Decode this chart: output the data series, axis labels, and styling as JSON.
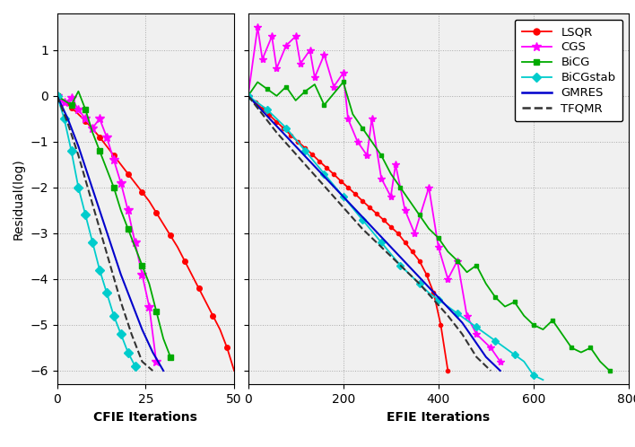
{
  "cfie": {
    "lsqr": {
      "x": [
        0,
        2,
        4,
        6,
        8,
        10,
        12,
        14,
        16,
        18,
        20,
        22,
        24,
        26,
        28,
        30,
        32,
        34,
        36,
        38,
        40,
        42,
        44,
        46,
        48,
        50
      ],
      "y": [
        0,
        -0.12,
        -0.25,
        -0.4,
        -0.55,
        -0.72,
        -0.9,
        -1.1,
        -1.3,
        -1.5,
        -1.7,
        -1.9,
        -2.1,
        -2.3,
        -2.55,
        -2.8,
        -3.05,
        -3.3,
        -3.6,
        -3.9,
        -4.2,
        -4.5,
        -4.8,
        -5.1,
        -5.5,
        -6.0
      ]
    },
    "cgs": {
      "x": [
        0,
        2,
        4,
        6,
        8,
        10,
        12,
        14,
        16,
        18,
        20,
        22,
        24,
        26,
        28
      ],
      "y": [
        0,
        -0.15,
        -0.05,
        -0.3,
        -0.5,
        -0.7,
        -0.5,
        -0.9,
        -1.4,
        -1.9,
        -2.5,
        -3.2,
        -3.9,
        -4.6,
        -5.8
      ]
    },
    "bicg": {
      "x": [
        0,
        2,
        4,
        6,
        8,
        10,
        12,
        14,
        16,
        18,
        20,
        22,
        24,
        26,
        28,
        30,
        32
      ],
      "y": [
        0,
        -0.1,
        -0.2,
        0.1,
        -0.3,
        -0.8,
        -1.2,
        -1.6,
        -2.0,
        -2.5,
        -2.9,
        -3.3,
        -3.7,
        -4.1,
        -4.7,
        -5.3,
        -5.7
      ]
    },
    "bicgstab": {
      "x": [
        0,
        2,
        4,
        6,
        8,
        10,
        12,
        14,
        16,
        18,
        20,
        22
      ],
      "y": [
        0,
        -0.5,
        -1.2,
        -2.0,
        -2.6,
        -3.2,
        -3.8,
        -4.3,
        -4.8,
        -5.2,
        -5.6,
        -5.9
      ]
    },
    "gmres": {
      "x": [
        0,
        3,
        6,
        9,
        12,
        15,
        18,
        21,
        24,
        27,
        30
      ],
      "y": [
        0,
        -0.5,
        -1.1,
        -1.8,
        -2.5,
        -3.2,
        -3.9,
        -4.5,
        -5.1,
        -5.6,
        -6.0
      ]
    },
    "tfqmr": {
      "x": [
        0,
        3,
        6,
        9,
        12,
        15,
        18,
        21,
        24,
        27
      ],
      "y": [
        0,
        -0.6,
        -1.3,
        -2.1,
        -2.9,
        -3.7,
        -4.5,
        -5.2,
        -5.8,
        -6.0
      ]
    }
  },
  "efie": {
    "lsqr": {
      "x": [
        0,
        15,
        30,
        45,
        60,
        75,
        90,
        105,
        120,
        135,
        150,
        165,
        180,
        195,
        210,
        225,
        240,
        255,
        270,
        285,
        300,
        315,
        330,
        345,
        360,
        375,
        390,
        405,
        420
      ],
      "y": [
        0,
        -0.14,
        -0.28,
        -0.42,
        -0.57,
        -0.71,
        -0.86,
        -1.0,
        -1.14,
        -1.28,
        -1.43,
        -1.57,
        -1.71,
        -1.86,
        -2.0,
        -2.14,
        -2.29,
        -2.43,
        -2.57,
        -2.71,
        -2.86,
        -3.0,
        -3.2,
        -3.4,
        -3.6,
        -3.9,
        -4.3,
        -5.0,
        -6.0
      ]
    },
    "cgs": {
      "x": [
        0,
        20,
        30,
        50,
        60,
        80,
        100,
        110,
        130,
        140,
        160,
        180,
        200,
        210,
        230,
        250,
        260,
        280,
        300,
        310,
        330,
        350,
        380,
        400,
        420,
        440,
        460,
        480,
        510,
        530
      ],
      "y": [
        0,
        1.5,
        0.8,
        1.3,
        0.6,
        1.1,
        1.3,
        0.7,
        1.0,
        0.4,
        0.9,
        0.2,
        0.5,
        -0.5,
        -1.0,
        -1.3,
        -0.5,
        -1.8,
        -2.2,
        -1.5,
        -2.5,
        -3.0,
        -2.0,
        -3.3,
        -4.0,
        -3.6,
        -4.8,
        -5.2,
        -5.5,
        -5.8
      ]
    },
    "bicg": {
      "x": [
        0,
        20,
        40,
        60,
        80,
        100,
        120,
        140,
        160,
        180,
        200,
        220,
        240,
        260,
        280,
        300,
        320,
        340,
        360,
        380,
        400,
        420,
        440,
        460,
        480,
        500,
        520,
        540,
        560,
        580,
        600,
        620,
        640,
        660,
        680,
        700,
        720,
        740,
        760
      ],
      "y": [
        0,
        0.3,
        0.15,
        0.0,
        0.2,
        -0.1,
        0.1,
        0.25,
        -0.2,
        0.05,
        0.3,
        -0.4,
        -0.7,
        -1.0,
        -1.3,
        -1.7,
        -2.0,
        -2.3,
        -2.6,
        -2.9,
        -3.1,
        -3.4,
        -3.6,
        -3.85,
        -3.7,
        -4.1,
        -4.4,
        -4.6,
        -4.5,
        -4.8,
        -5.0,
        -5.1,
        -4.9,
        -5.2,
        -5.5,
        -5.6,
        -5.5,
        -5.8,
        -6.0
      ]
    },
    "bicgstab": {
      "x": [
        0,
        20,
        40,
        60,
        80,
        100,
        120,
        140,
        160,
        180,
        200,
        220,
        240,
        260,
        280,
        300,
        320,
        340,
        360,
        380,
        400,
        420,
        440,
        460,
        480,
        500,
        520,
        540,
        560,
        580,
        600,
        620
      ],
      "y": [
        0,
        -0.15,
        -0.3,
        -0.5,
        -0.7,
        -0.95,
        -1.2,
        -1.45,
        -1.7,
        -1.95,
        -2.2,
        -2.45,
        -2.7,
        -2.95,
        -3.2,
        -3.45,
        -3.7,
        -3.9,
        -4.1,
        -4.3,
        -4.45,
        -4.6,
        -4.75,
        -4.9,
        -5.05,
        -5.2,
        -5.35,
        -5.5,
        -5.65,
        -5.8,
        -6.1,
        -6.2
      ]
    },
    "gmres": {
      "x": [
        0,
        50,
        100,
        150,
        200,
        250,
        300,
        350,
        400,
        450,
        500,
        530
      ],
      "y": [
        0,
        -0.55,
        -1.1,
        -1.65,
        -2.2,
        -2.75,
        -3.3,
        -3.85,
        -4.4,
        -4.95,
        -5.7,
        -6.0
      ]
    },
    "tfqmr": {
      "x": [
        0,
        30,
        60,
        90,
        120,
        150,
        180,
        210,
        240,
        270,
        300,
        330,
        360,
        390,
        420,
        450,
        480,
        510
      ],
      "y": [
        0,
        -0.4,
        -0.8,
        -1.15,
        -1.5,
        -1.85,
        -2.2,
        -2.55,
        -2.9,
        -3.2,
        -3.5,
        -3.8,
        -4.1,
        -4.45,
        -4.8,
        -5.2,
        -5.7,
        -6.0
      ]
    }
  },
  "colors": {
    "lsqr": "#ff0000",
    "cgs": "#ff00ff",
    "bicg": "#00aa00",
    "bicgstab": "#00cccc",
    "gmres": "#0000cc",
    "tfqmr": "#333333"
  },
  "ylim": [
    -6.3,
    1.8
  ],
  "ytick_top": 1,
  "cfie_xlim": [
    0,
    50
  ],
  "efie_xlim": [
    0,
    800
  ],
  "ylabel": "Residual(log)",
  "cfie_xlabel": "CFIE Iterations",
  "efie_xlabel": "EFIE Iterations",
  "yticks": [
    -6,
    -5,
    -4,
    -3,
    -2,
    -1,
    0,
    1
  ],
  "cfie_xticks": [
    0,
    25,
    50
  ],
  "efie_xticks": [
    0,
    200,
    400,
    600,
    800
  ],
  "bg_color": "#f0f0f0"
}
